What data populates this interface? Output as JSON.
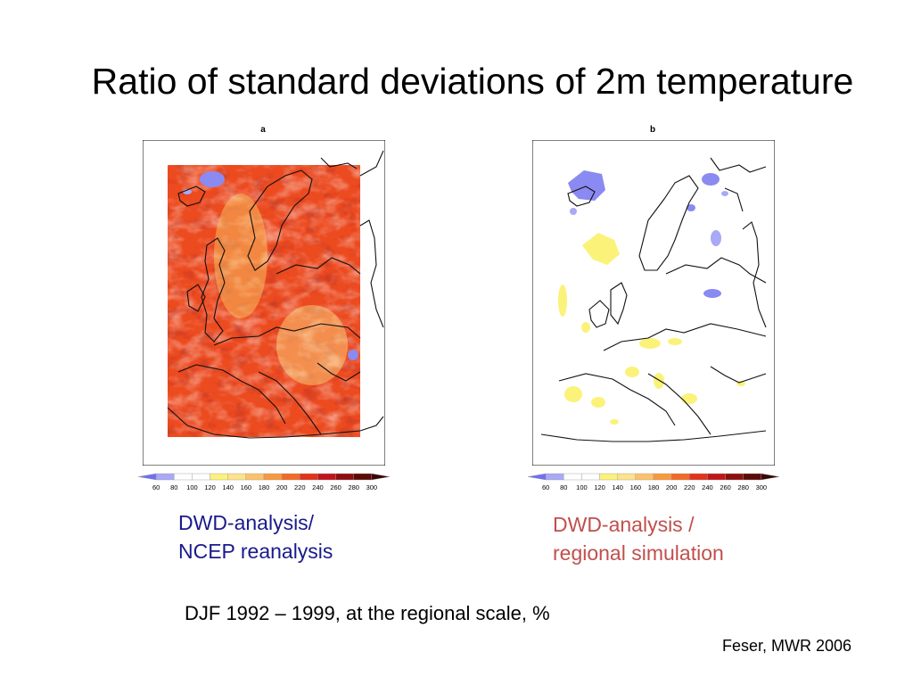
{
  "title": "Ratio of standard deviations of 2m temperature",
  "panels": [
    {
      "letter": "a",
      "caption_lines": [
        "DWD-analysis/",
        "NCEP reanalysis"
      ]
    },
    {
      "letter": "b",
      "caption_lines": [
        "DWD-analysis /",
        "regional simulation"
      ]
    }
  ],
  "colorbar": {
    "ticks": [
      "60",
      "80",
      "100",
      "120",
      "140",
      "160",
      "180",
      "200",
      "220",
      "240",
      "260",
      "280",
      "300"
    ],
    "colors": [
      "#6f6ff0",
      "#a9a9f7",
      "#ffffff",
      "#ffffff",
      "#fbf27a",
      "#fde28a",
      "#fcc26a",
      "#f9993f",
      "#f26a25",
      "#e2321c",
      "#c0141b",
      "#8e0e10",
      "#5c0a08",
      "#3a0505"
    ]
  },
  "subtitle": "DJF 1992 – 1999, at the regional scale, %",
  "citation": "Feser, MWR 2006",
  "colors": {
    "caption_a": "#1a1a8c",
    "caption_b": "#c0504d"
  }
}
